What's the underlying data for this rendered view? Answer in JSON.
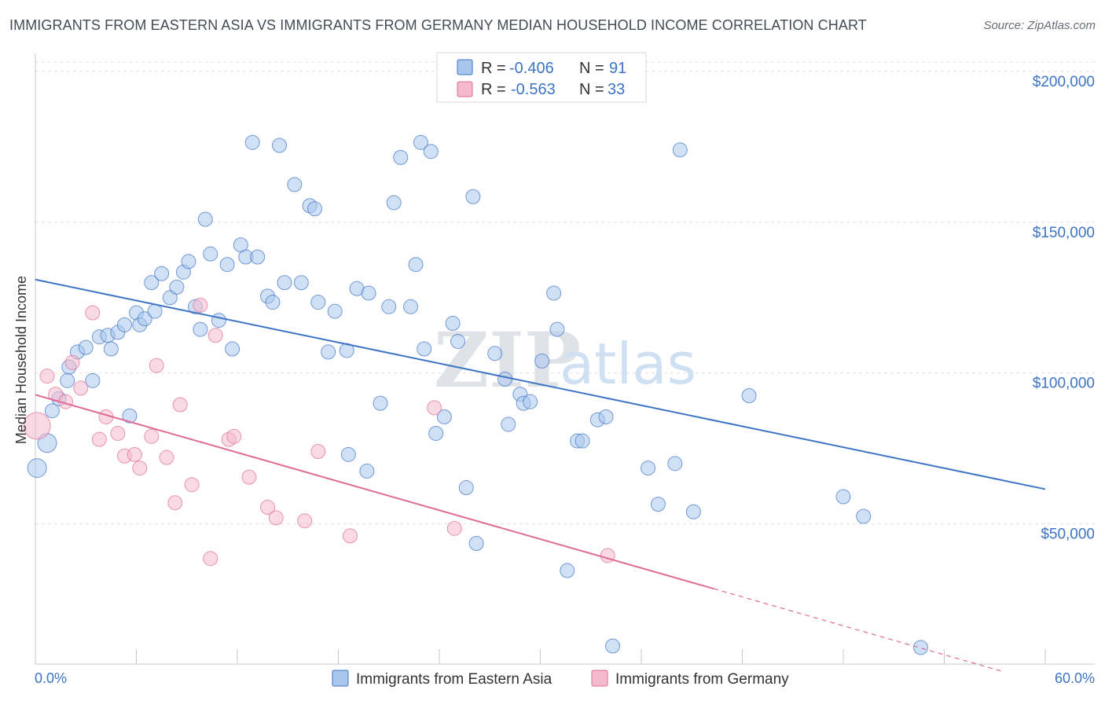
{
  "title": "IMMIGRANTS FROM EASTERN ASIA VS IMMIGRANTS FROM GERMANY MEDIAN HOUSEHOLD INCOME CORRELATION CHART",
  "source": "Source: ZipAtlas.com",
  "watermark": {
    "zip": "ZIP",
    "atlas": "atlas"
  },
  "colors": {
    "blue": "#3d74c4",
    "blue_fill": "#a9c6ec",
    "pink": "#e06c96",
    "pink_fill": "#f4b9cc",
    "grid": "#dde1e6"
  },
  "legend": {
    "rows": [
      {
        "r_label": "R = ",
        "r_value": "-0.406",
        "n_label": "N = ",
        "n_value": "91"
      },
      {
        "r_label": "R = ",
        "r_value": "-0.563",
        "n_label": "N = ",
        "n_value": "33"
      }
    ]
  },
  "chart_data": {
    "type": "scatter",
    "xlabel": "",
    "ylabel": "Median Household Income",
    "x_axis_labels": {
      "min": "0.0%",
      "max": "60.0%"
    },
    "xlim": [
      0,
      60
    ],
    "ylim": [
      3500,
      206000
    ],
    "y_ticks": [
      {
        "value": 50000,
        "label": "$50,000"
      },
      {
        "value": 100000,
        "label": "$100,000"
      },
      {
        "value": 150000,
        "label": "$150,000"
      },
      {
        "value": 200000,
        "label": "$200,000"
      }
    ],
    "grid": true,
    "legend_position": "top-center",
    "series": [
      {
        "name": "Immigrants from Eastern Asia",
        "color": "#3d74c4",
        "r": -0.406,
        "n": 91,
        "trend": {
          "x1": 0.0,
          "y1": 131000,
          "x2": 60.0,
          "y2": 61500
        },
        "points": [
          [
            0.1,
            68500,
            1
          ],
          [
            0.7,
            76800,
            1
          ],
          [
            1.0,
            87500,
            0
          ],
          [
            1.4,
            91500,
            0
          ],
          [
            1.9,
            97500,
            0
          ],
          [
            2.0,
            102000,
            0
          ],
          [
            2.5,
            107000,
            0
          ],
          [
            3.0,
            108500,
            0
          ],
          [
            3.4,
            97500,
            0
          ],
          [
            3.8,
            112000,
            0
          ],
          [
            4.3,
            112500,
            0
          ],
          [
            4.5,
            108000,
            0
          ],
          [
            4.9,
            113500,
            0
          ],
          [
            5.3,
            116000,
            0
          ],
          [
            5.6,
            85800,
            0
          ],
          [
            6.0,
            120000,
            0
          ],
          [
            6.2,
            116000,
            0
          ],
          [
            6.5,
            118000,
            0
          ],
          [
            6.9,
            130000,
            0
          ],
          [
            7.1,
            120500,
            0
          ],
          [
            7.5,
            133000,
            0
          ],
          [
            8.0,
            125000,
            0
          ],
          [
            8.4,
            128500,
            0
          ],
          [
            8.8,
            133500,
            0
          ],
          [
            9.1,
            137000,
            0
          ],
          [
            9.5,
            122000,
            0
          ],
          [
            9.8,
            114500,
            0
          ],
          [
            10.1,
            151000,
            0
          ],
          [
            10.4,
            139500,
            0
          ],
          [
            10.9,
            117500,
            0
          ],
          [
            11.4,
            136000,
            0
          ],
          [
            11.7,
            108000,
            0
          ],
          [
            12.2,
            142500,
            0
          ],
          [
            12.5,
            138500,
            0
          ],
          [
            13.2,
            138500,
            0
          ],
          [
            13.8,
            125500,
            0
          ],
          [
            14.1,
            123500,
            0
          ],
          [
            12.9,
            176500,
            0
          ],
          [
            14.5,
            175500,
            0
          ],
          [
            14.8,
            130000,
            0
          ],
          [
            15.4,
            162500,
            0
          ],
          [
            15.8,
            130000,
            0
          ],
          [
            16.3,
            155500,
            0
          ],
          [
            16.6,
            154500,
            0
          ],
          [
            16.8,
            123500,
            0
          ],
          [
            17.4,
            107000,
            0
          ],
          [
            17.8,
            120500,
            0
          ],
          [
            18.5,
            107500,
            0
          ],
          [
            18.6,
            73000,
            0
          ],
          [
            19.1,
            128000,
            0
          ],
          [
            19.7,
            67500,
            0
          ],
          [
            19.8,
            126500,
            0
          ],
          [
            20.5,
            90000,
            0
          ],
          [
            21.0,
            122000,
            0
          ],
          [
            21.3,
            156500,
            0
          ],
          [
            21.7,
            171500,
            0
          ],
          [
            22.3,
            122000,
            0
          ],
          [
            22.6,
            136000,
            0
          ],
          [
            22.9,
            176500,
            0
          ],
          [
            23.1,
            108000,
            0
          ],
          [
            23.5,
            173500,
            0
          ],
          [
            23.8,
            80000,
            0
          ],
          [
            24.3,
            85500,
            0
          ],
          [
            24.8,
            116500,
            0
          ],
          [
            25.1,
            110500,
            0
          ],
          [
            25.6,
            62000,
            0
          ],
          [
            26.0,
            158500,
            0
          ],
          [
            26.2,
            43500,
            0
          ],
          [
            27.3,
            106500,
            0
          ],
          [
            27.9,
            98000,
            0
          ],
          [
            28.1,
            83000,
            0
          ],
          [
            28.8,
            93000,
            0
          ],
          [
            29.0,
            90000,
            0
          ],
          [
            29.4,
            90500,
            0
          ],
          [
            30.1,
            104000,
            0
          ],
          [
            30.8,
            126500,
            0
          ],
          [
            31.0,
            114500,
            0
          ],
          [
            31.6,
            34500,
            0
          ],
          [
            32.2,
            77500,
            0
          ],
          [
            32.5,
            77500,
            0
          ],
          [
            33.4,
            84500,
            0
          ],
          [
            33.9,
            85500,
            0
          ],
          [
            34.3,
            9500,
            0
          ],
          [
            36.4,
            68500,
            0
          ],
          [
            37.0,
            56500,
            0
          ],
          [
            38.0,
            70000,
            0
          ],
          [
            38.3,
            174000,
            0
          ],
          [
            39.1,
            54000,
            0
          ],
          [
            42.4,
            92500,
            0
          ],
          [
            48.0,
            59000,
            0
          ],
          [
            49.2,
            52500,
            0
          ],
          [
            52.6,
            9000,
            0
          ]
        ]
      },
      {
        "name": "Immigrants from Germany",
        "color": "#e06c96",
        "r": -0.563,
        "n": 33,
        "trend": {
          "x1": 0.0,
          "y1": 92800,
          "x2": 40.3,
          "y2": 28500
        },
        "trend_dashed": {
          "x1": 40.3,
          "y1": 28500,
          "x2": 57.5,
          "y2": 1000
        },
        "points": [
          [
            0.1,
            82500,
            2
          ],
          [
            0.7,
            99000,
            0
          ],
          [
            1.2,
            93000,
            0
          ],
          [
            1.8,
            90500,
            0
          ],
          [
            2.2,
            103500,
            0
          ],
          [
            2.7,
            95000,
            0
          ],
          [
            3.4,
            120000,
            0
          ],
          [
            3.8,
            78000,
            0
          ],
          [
            4.2,
            85500,
            0
          ],
          [
            4.9,
            80000,
            0
          ],
          [
            5.3,
            72500,
            0
          ],
          [
            5.9,
            73000,
            0
          ],
          [
            6.2,
            68500,
            0
          ],
          [
            6.9,
            79000,
            0
          ],
          [
            7.2,
            102500,
            0
          ],
          [
            7.8,
            72000,
            0
          ],
          [
            8.3,
            57000,
            0
          ],
          [
            8.6,
            89500,
            0
          ],
          [
            9.3,
            63000,
            0
          ],
          [
            9.8,
            122500,
            0
          ],
          [
            10.4,
            38500,
            0
          ],
          [
            10.7,
            112500,
            0
          ],
          [
            11.5,
            78000,
            0
          ],
          [
            11.8,
            79000,
            0
          ],
          [
            12.7,
            65500,
            0
          ],
          [
            13.8,
            55500,
            0
          ],
          [
            14.3,
            52000,
            0
          ],
          [
            16.0,
            51000,
            0
          ],
          [
            16.8,
            74000,
            0
          ],
          [
            18.7,
            46000,
            0
          ],
          [
            23.7,
            88500,
            0
          ],
          [
            24.9,
            48500,
            0
          ],
          [
            34.0,
            39500,
            0
          ]
        ]
      }
    ]
  }
}
